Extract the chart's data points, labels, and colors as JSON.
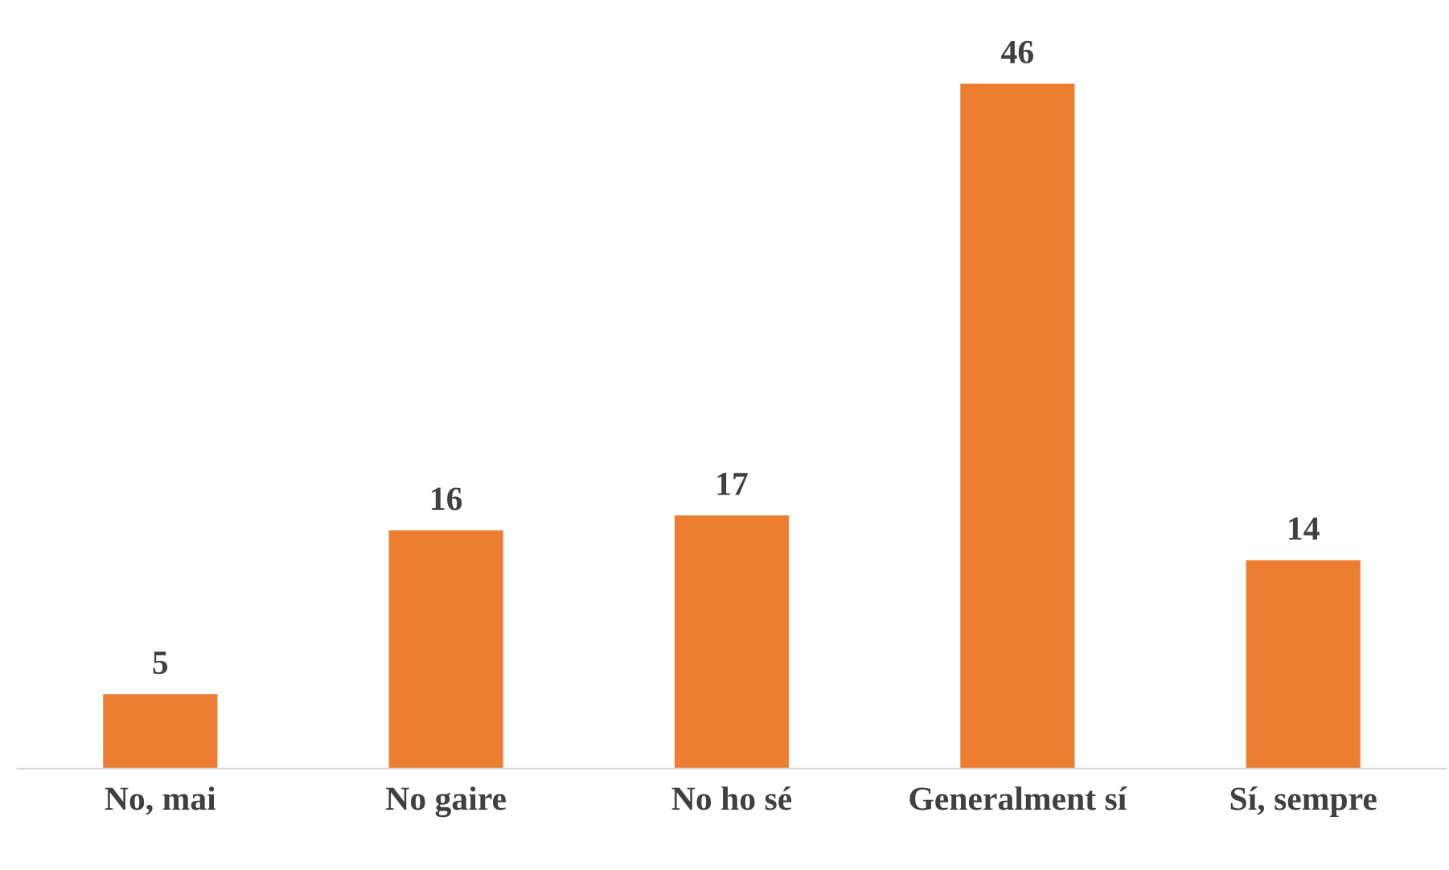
{
  "chart_data": {
    "type": "bar",
    "categories": [
      "No, mai",
      "No gaire",
      "No ho sé",
      "Generalment sí",
      "Sí, sempre"
    ],
    "values": [
      5,
      16,
      17,
      46,
      14
    ],
    "color": "#ed7d31",
    "data_labels": true,
    "grid": false,
    "legend": false
  }
}
